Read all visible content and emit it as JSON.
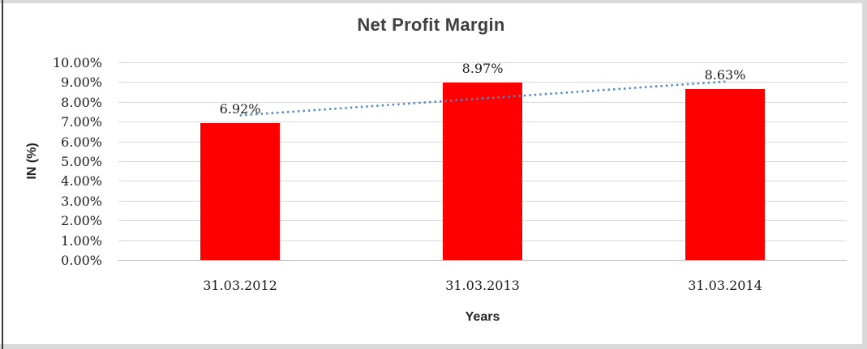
{
  "window": {
    "background": "#ffffff",
    "frame_edge_color": "#d9d9d9",
    "left_edge_line_color": "#3a3a3a"
  },
  "chart_data": {
    "type": "bar",
    "title": "Net Profit Margin",
    "categories": [
      "31.03.2012",
      "31.03.2013",
      "31.03.2014"
    ],
    "values": [
      6.92,
      8.97,
      8.63
    ],
    "data_labels": [
      "6.92%",
      "8.97%",
      "8.63%"
    ],
    "xlabel": "Years",
    "ylabel": "IN (%)",
    "ylim": [
      0,
      10
    ],
    "ytick_step": 1,
    "ytick_labels_top_down": [
      "10.00%",
      "9.00%",
      "8.00%",
      "7.00%",
      "6.00%",
      "5.00%",
      "4.00%",
      "3.00%",
      "2.00%",
      "1.00%",
      "0.00%"
    ],
    "grid": true,
    "legend": "none",
    "bar_color": "#ff0000",
    "gridline_color": "#d9d9d9",
    "axis_line_color": "#bfbfbf",
    "title_color": "#404040",
    "text_color": "#1a1a1a",
    "trendline": {
      "type": "linear",
      "style": "dotted",
      "color": "#4f87c9",
      "fit_values": [
        7.32,
        8.17,
        9.03
      ]
    }
  }
}
